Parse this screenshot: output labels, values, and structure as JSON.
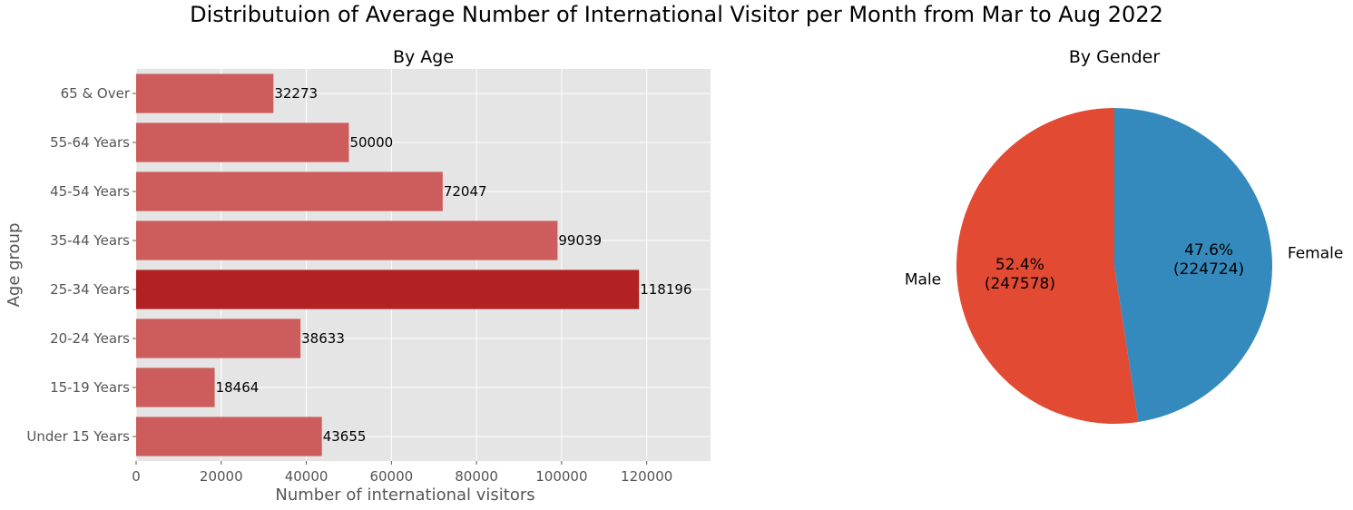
{
  "title": "Distributuion of Average Number of International Visitor per Month from Mar to Aug 2022",
  "chart_data": [
    {
      "type": "bar",
      "orientation": "horizontal",
      "title": "By Age",
      "xlabel": "Number of international visitors",
      "ylabel": "Age group",
      "categories": [
        "Under 15 Years",
        "15-19 Years",
        "20-24 Years",
        "25-34 Years",
        "35-44 Years",
        "45-54 Years",
        "55-64 Years",
        "65 & Over"
      ],
      "values": [
        43655,
        18464,
        38633,
        118196,
        99039,
        72047,
        50000,
        32273
      ],
      "highlight": "25-34 Years",
      "xlim": [
        0,
        135000
      ],
      "xticks": [
        0,
        20000,
        40000,
        60000,
        80000,
        100000,
        120000
      ],
      "grid": true,
      "colors": {
        "bar": "#cd5c5c",
        "highlight": "#b22222",
        "background": "#e5e5e5",
        "grid": "#ffffff"
      }
    },
    {
      "type": "pie",
      "title": "By Gender",
      "labels": [
        "Male",
        "Female"
      ],
      "values": [
        247578,
        224724
      ],
      "percent_labels": [
        "52.4%",
        "47.6%"
      ],
      "value_labels": [
        "(247578)",
        "(224724)"
      ],
      "colors": [
        "#e24a33",
        "#348abd"
      ]
    }
  ]
}
